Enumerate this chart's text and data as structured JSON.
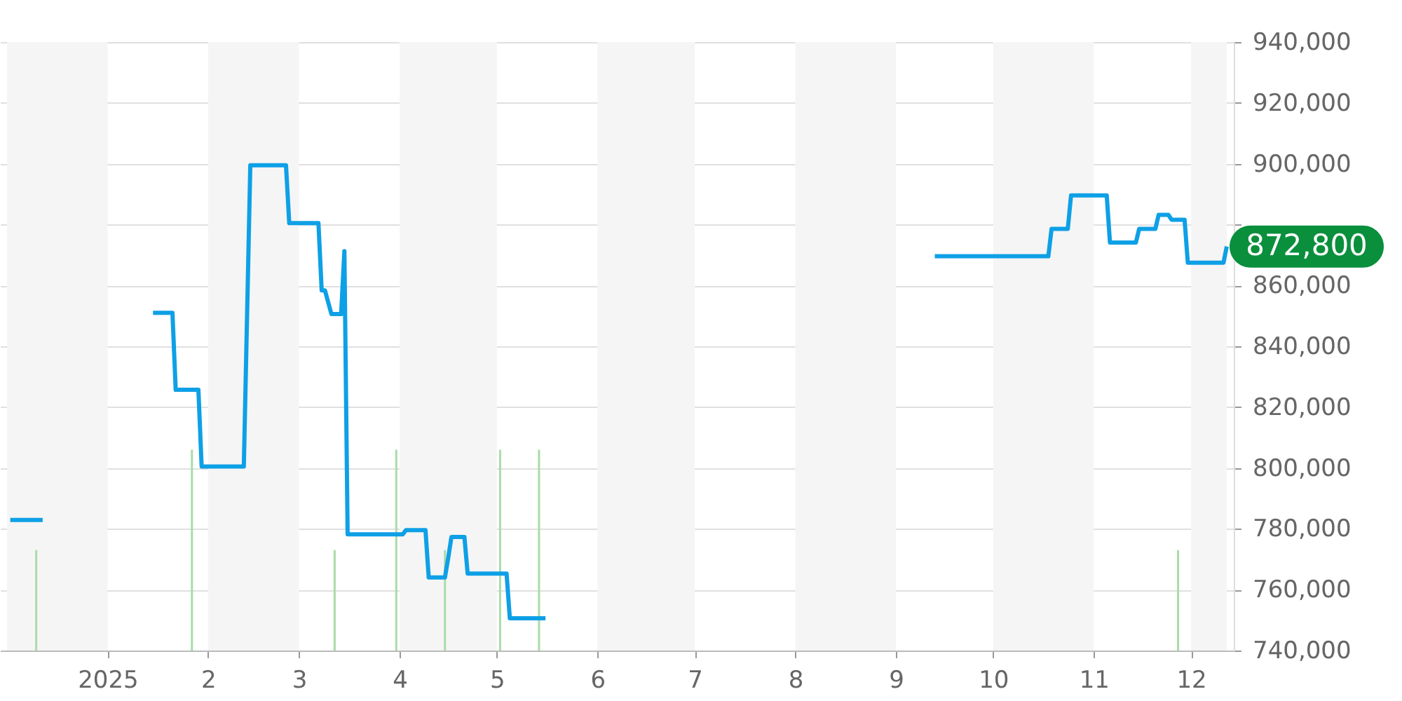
{
  "chart_data": {
    "type": "line",
    "xlim": [
      "2024-12-01",
      "2025-12-12"
    ],
    "xticks": [
      {
        "value": "2025-01-01",
        "label": "2025"
      },
      {
        "value": "2025-02-01",
        "label": "2"
      },
      {
        "value": "2025-03-01",
        "label": "3"
      },
      {
        "value": "2025-04-01",
        "label": "4"
      },
      {
        "value": "2025-05-01",
        "label": "5"
      },
      {
        "value": "2025-06-01",
        "label": "6"
      },
      {
        "value": "2025-07-01",
        "label": "7"
      },
      {
        "value": "2025-08-01",
        "label": "8"
      },
      {
        "value": "2025-09-01",
        "label": "9"
      },
      {
        "value": "2025-10-01",
        "label": "10"
      },
      {
        "value": "2025-11-01",
        "label": "11"
      },
      {
        "value": "2025-12-01",
        "label": "12"
      }
    ],
    "ylim": [
      740000,
      940000
    ],
    "yticks": [
      {
        "value": 740000,
        "label": "740,000"
      },
      {
        "value": 760000,
        "label": "760,000"
      },
      {
        "value": 780000,
        "label": "780,000"
      },
      {
        "value": 800000,
        "label": "800,000"
      },
      {
        "value": 820000,
        "label": "820,000"
      },
      {
        "value": 840000,
        "label": "840,000"
      },
      {
        "value": 860000,
        "label": "860,000"
      },
      {
        "value": 880000,
        "label": null
      },
      {
        "value": 900000,
        "label": "900,000"
      },
      {
        "value": 920000,
        "label": "920,000"
      },
      {
        "value": 940000,
        "label": "940,000"
      }
    ],
    "grid": "y",
    "bands": [
      {
        "axis": "x",
        "from": "2024-12-01",
        "to": "2025-01-01",
        "color": "#f5f5f5"
      },
      {
        "axis": "x",
        "from": "2025-02-01",
        "to": "2025-03-01",
        "color": "#f5f5f5"
      },
      {
        "axis": "x",
        "from": "2025-04-01",
        "to": "2025-05-01",
        "color": "#f5f5f5"
      },
      {
        "axis": "x",
        "from": "2025-06-01",
        "to": "2025-07-01",
        "color": "#f5f5f5"
      },
      {
        "axis": "x",
        "from": "2025-08-01",
        "to": "2025-09-01",
        "color": "#f5f5f5"
      },
      {
        "axis": "x",
        "from": "2025-10-01",
        "to": "2025-11-01",
        "color": "#f5f5f5"
      },
      {
        "axis": "x",
        "from": "2025-12-01",
        "to": "2025-12-12",
        "color": "#f5f5f5"
      }
    ],
    "series": [
      {
        "type": "bar",
        "color": "#a8dca8",
        "x": [
          "2024-12-10",
          "2025-01-27",
          "2025-03-12",
          "2025-03-31",
          "2025-04-15",
          "2025-05-02",
          "2025-05-14",
          "2025-11-27"
        ],
        "values": [
          773000,
          806000,
          773000,
          806000,
          773000,
          806000,
          806000,
          773000
        ]
      },
      {
        "color": "#0ea0e6",
        "x": [
          "2024-12-02",
          "2024-12-12",
          "2024-12-25",
          "2025-01-15",
          "2025-01-21",
          "2025-01-22",
          "2025-01-29",
          "2025-01-30",
          "2025-02-12",
          "2025-02-14",
          "2025-02-25",
          "2025-02-26",
          "2025-03-07",
          "2025-03-08",
          "2025-03-09",
          "2025-03-11",
          "2025-03-14",
          "2025-03-15",
          "2025-03-16",
          "2025-04-02",
          "2025-04-03",
          "2025-04-09",
          "2025-04-10",
          "2025-04-15",
          "2025-04-16",
          "2025-04-17",
          "2025-04-21",
          "2025-04-22",
          "2025-05-04",
          "2025-05-05",
          "2025-05-16",
          "2025-07-01",
          "2025-09-13",
          "2025-10-18",
          "2025-10-19",
          "2025-10-24",
          "2025-10-25",
          "2025-11-05",
          "2025-11-06",
          "2025-11-14",
          "2025-11-15",
          "2025-11-20",
          "2025-11-21",
          "2025-11-24",
          "2025-11-25",
          "2025-11-29",
          "2025-11-30",
          "2025-12-11",
          "2025-12-12"
        ],
        "values": [
          782900,
          782900,
          null,
          851000,
          851000,
          825700,
          825700,
          800500,
          800500,
          899500,
          899500,
          880500,
          880500,
          858400,
          858400,
          850600,
          850600,
          871300,
          778200,
          778200,
          779600,
          779600,
          764000,
          764000,
          770400,
          777300,
          777300,
          765300,
          765300,
          750600,
          750600,
          null,
          869600,
          869600,
          878600,
          878600,
          889600,
          889600,
          874100,
          874100,
          878600,
          878600,
          883200,
          883200,
          881600,
          881600,
          867500,
          867500,
          872800
        ]
      }
    ],
    "annotations": [
      {
        "text": "872,800",
        "x": "2025-12-12",
        "y": 872800
      }
    ]
  }
}
